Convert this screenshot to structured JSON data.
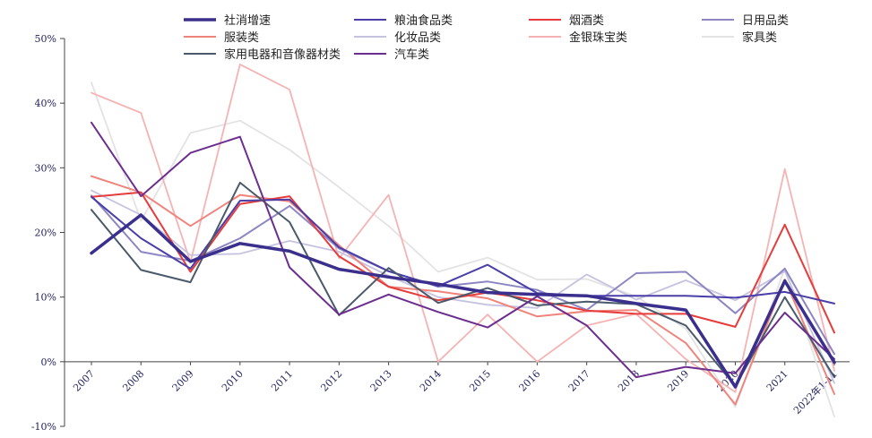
{
  "chart_data": {
    "type": "line",
    "title": "",
    "xlabel": "",
    "ylabel": "",
    "categories": [
      "2007",
      "2008",
      "2009",
      "2010",
      "2011",
      "2012",
      "2013",
      "2014",
      "2015",
      "2016",
      "2017",
      "2018",
      "2019",
      "2020",
      "2021",
      "2022年1-11"
    ],
    "yticks": [
      {
        "value": 50,
        "label": "50%"
      },
      {
        "value": 40,
        "label": "40%"
      },
      {
        "value": 30,
        "label": "30%"
      },
      {
        "value": 20,
        "label": "20%"
      },
      {
        "value": 10,
        "label": "10%"
      },
      {
        "value": 0,
        "label": "0%"
      },
      {
        "value": -10,
        "label": "-10%"
      }
    ],
    "ylim": [
      -10,
      50
    ],
    "grid": false,
    "legend_position": "top",
    "series": [
      {
        "name": "社消增速",
        "color": "#3a2f8c",
        "width": 3.5,
        "values": [
          16.8,
          22.7,
          15.5,
          18.3,
          17.1,
          14.3,
          13.1,
          12.0,
          10.7,
          10.4,
          10.2,
          9.0,
          8.0,
          -3.9,
          12.5,
          -0.1
        ]
      },
      {
        "name": "粮油食品类",
        "color": "#4a3ea8",
        "width": 2,
        "values": [
          25.5,
          19.1,
          14.4,
          24.9,
          25.1,
          17.7,
          14.0,
          11.7,
          15.0,
          10.6,
          10.2,
          10.2,
          10.2,
          9.9,
          10.8,
          9.0
        ]
      },
      {
        "name": "烟酒类",
        "color": "#e63c3c",
        "width": 2,
        "values": [
          25.5,
          26.2,
          13.9,
          24.4,
          25.6,
          16.3,
          11.6,
          9.5,
          10.7,
          9.5,
          7.9,
          7.4,
          7.4,
          5.4,
          21.2,
          4.5
        ]
      },
      {
        "name": "日用品类",
        "color": "#8c86c2",
        "width": 2,
        "values": [
          25.7,
          17.0,
          15.6,
          19.1,
          24.1,
          17.5,
          14.0,
          11.6,
          12.4,
          11.1,
          8.0,
          13.7,
          13.9,
          7.5,
          14.4,
          1.2
        ]
      },
      {
        "name": "服装类",
        "color": "#f0837c",
        "width": 2,
        "values": [
          28.7,
          26.2,
          21.0,
          25.8,
          24.8,
          18.0,
          11.6,
          10.9,
          9.8,
          7.0,
          7.8,
          8.0,
          2.9,
          -6.6,
          12.7,
          -5.0
        ]
      },
      {
        "name": "化妆品类",
        "color": "#c6c3e0",
        "width": 1.8,
        "values": [
          26.5,
          22.7,
          16.5,
          16.7,
          18.7,
          17.0,
          13.3,
          10.0,
          8.8,
          8.3,
          13.5,
          9.6,
          12.6,
          9.5,
          14.0,
          -3.3
        ]
      },
      {
        "name": "金银珠宝类",
        "color": "#f5b3b3",
        "width": 1.8,
        "values": [
          41.6,
          38.5,
          15.4,
          46.0,
          42.1,
          16.0,
          25.8,
          0.0,
          7.3,
          0.0,
          5.6,
          7.4,
          0.4,
          -4.7,
          29.8,
          -1.4
        ]
      },
      {
        "name": "家具类",
        "color": "#e3e3e3",
        "width": 1.8,
        "values": [
          43.2,
          21.8,
          35.4,
          37.3,
          32.8,
          27.0,
          21.0,
          13.9,
          16.1,
          12.7,
          12.8,
          10.1,
          5.1,
          -7.0,
          14.5,
          -8.5
        ]
      },
      {
        "name": "家用电器和音像器材类",
        "color": "#4a5a6a",
        "width": 2,
        "values": [
          23.5,
          14.2,
          12.3,
          27.7,
          21.6,
          7.2,
          14.5,
          9.1,
          11.4,
          8.7,
          9.3,
          8.9,
          5.6,
          -3.8,
          10.0,
          -2.4
        ]
      },
      {
        "name": "汽车类",
        "color": "#6b2e8f",
        "width": 2,
        "values": [
          37.0,
          25.6,
          32.3,
          34.8,
          14.6,
          7.3,
          10.4,
          7.7,
          5.3,
          10.1,
          5.6,
          -2.4,
          -0.8,
          -1.8,
          7.6,
          0.4
        ]
      }
    ]
  }
}
